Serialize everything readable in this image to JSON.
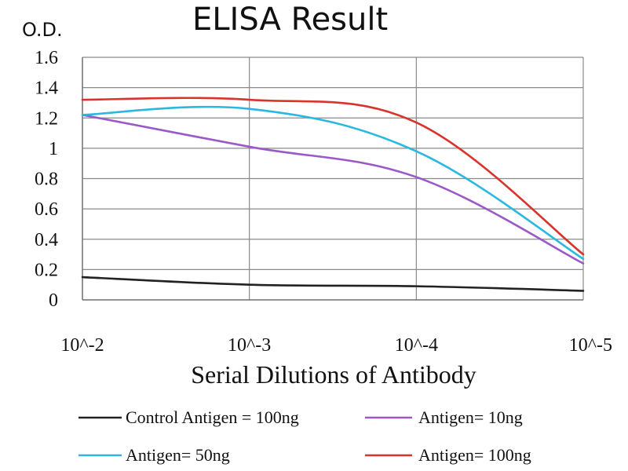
{
  "chart_data": {
    "type": "line",
    "title": "ELISA Result",
    "ylabel": "O.D.",
    "xlabel": "Serial Dilutions of Antibody",
    "categories": [
      "10^-2",
      "10^-3",
      "10^-4",
      "10^-5"
    ],
    "x": [
      0.01,
      0.001,
      0.0001,
      1e-05
    ],
    "ylim": [
      0,
      1.6
    ],
    "yticks": [
      0,
      0.2,
      0.4,
      0.6,
      0.8,
      1,
      1.2,
      1.4,
      1.6
    ],
    "ytick_labels": [
      "0",
      "0.2",
      "0.4",
      "0.6",
      "0.8",
      "1",
      "1.2",
      "1.4",
      "1.6"
    ],
    "grid": true,
    "legend_position": "bottom",
    "series": [
      {
        "name": "Control Antigen = 100ng",
        "color": "#222222",
        "values": [
          0.15,
          0.1,
          0.09,
          0.06
        ]
      },
      {
        "name": "Antigen= 10ng",
        "color": "#9b59c7",
        "values": [
          1.22,
          1.01,
          0.81,
          0.24
        ]
      },
      {
        "name": "Antigen= 50ng",
        "color": "#2ab8e0",
        "values": [
          1.22,
          1.26,
          0.98,
          0.27
        ]
      },
      {
        "name": "Antigen= 100ng",
        "color": "#d9342b",
        "values": [
          1.32,
          1.32,
          1.17,
          0.3
        ]
      }
    ]
  }
}
